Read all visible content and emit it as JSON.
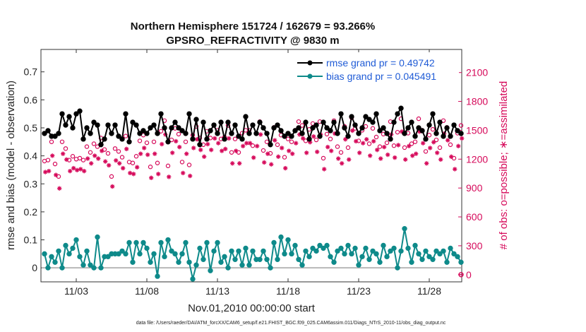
{
  "chart_data": {
    "type": "line",
    "title": "Northern Hemisphere 151724 / 162679 = 93.266%",
    "subtitle": "GPSRO_REFRACTIVITY @ 9830 m",
    "xlabel": "Nov.01,2010 00:00:00 start",
    "ylabel": "rmse and bias (model - observation)",
    "y2label": "# of obs: o=possible; ∗=assimilated",
    "footnote": "data file: /Users/raeder/DAI/ATM_forcXX/CAM6_setup/f.e21.FHIST_BGC.f09_025.CAM6assim.011/Diags_NTrS_2010-11/obs_diag_output.nc",
    "xlim": [
      0.5,
      30.3
    ],
    "ylim": [
      -0.05,
      0.78
    ],
    "y2lim": [
      -75,
      2340
    ],
    "xticks": [
      3,
      8,
      13,
      18,
      23,
      28
    ],
    "xtick_labels": [
      "11/03",
      "11/08",
      "11/13",
      "11/18",
      "11/23",
      "11/28"
    ],
    "yticks": [
      0,
      0.1,
      0.2,
      0.3,
      0.4,
      0.5,
      0.6,
      0.7
    ],
    "ytick_labels": [
      "0",
      "0.1",
      "0.2",
      "0.3",
      "0.4",
      "0.5",
      "0.6",
      "0.7"
    ],
    "y2ticks": [
      0,
      300,
      600,
      900,
      1200,
      1500,
      1800,
      2100
    ],
    "y2tick_labels": [
      "0",
      "300",
      "600",
      "900",
      "1200",
      "1500",
      "1800",
      "2100"
    ],
    "legend": [
      "rmse grand pr = 0.49742",
      "bias grand pr = 0.045491"
    ],
    "colors": {
      "rmse": "#000000",
      "bias": "#0e8a8a",
      "obs": "#d6095a",
      "zero": "#b8b8b8"
    },
    "x_start": 0.75,
    "x_step": 0.25,
    "series": [
      {
        "name": "rmse",
        "values": [
          0.48,
          0.49,
          0.47,
          0.47,
          0.48,
          0.55,
          0.51,
          0.54,
          0.5,
          0.55,
          0.56,
          0.46,
          0.5,
          0.48,
          0.52,
          0.51,
          0.44,
          0.46,
          0.51,
          0.48,
          0.51,
          0.47,
          0.46,
          0.55,
          0.45,
          0.52,
          0.51,
          0.48,
          0.49,
          0.48,
          0.5,
          0.51,
          0.48,
          0.55,
          0.5,
          0.45,
          0.5,
          0.52,
          0.5,
          0.49,
          0.48,
          0.55,
          0.46,
          0.53,
          0.44,
          0.52,
          0.46,
          0.49,
          0.51,
          0.48,
          0.52,
          0.46,
          0.52,
          0.48,
          0.51,
          0.47,
          0.46,
          0.54,
          0.48,
          0.51,
          0.48,
          0.52,
          0.5,
          0.48,
          0.44,
          0.5,
          0.51,
          0.49,
          0.47,
          0.48,
          0.47,
          0.49,
          0.5,
          0.48,
          0.52,
          0.46,
          0.5,
          0.51,
          0.47,
          0.52,
          0.5,
          0.49,
          0.52,
          0.48,
          0.55,
          0.5,
          0.47,
          0.54,
          0.51,
          0.48,
          0.5,
          0.54,
          0.53,
          0.52,
          0.55,
          0.49,
          0.5,
          0.48,
          0.46,
          0.52,
          0.55,
          0.57,
          0.48,
          0.5,
          0.52,
          0.47,
          0.5,
          0.49,
          0.46,
          0.51,
          0.55,
          0.48,
          0.52,
          0.47,
          0.5,
          0.47,
          0.51,
          0.49,
          0.48
        ]
      },
      {
        "name": "bias",
        "values": [
          0.05,
          0.0,
          0.04,
          0.02,
          0.06,
          0.0,
          0.08,
          0.05,
          0.07,
          0.1,
          0.04,
          0.01,
          0.06,
          0.01,
          0.0,
          0.11,
          0.0,
          0.04,
          0.04,
          0.05,
          0.05,
          0.05,
          0.06,
          0.05,
          0.09,
          0.02,
          0.09,
          0.05,
          0.09,
          0.07,
          0.02,
          0.05,
          -0.03,
          0.09,
          0.04,
          0.1,
          0.06,
          0.05,
          0.02,
          0.05,
          0.09,
          0.02,
          -0.04,
          0.01,
          0.07,
          0.03,
          0.09,
          -0.01,
          0.06,
          0.09,
          0.02,
          0.04,
          0.0,
          0.06,
          0.03,
          0.06,
          0.01,
          0.07,
          0.01,
          0.06,
          0.03,
          0.03,
          0.06,
          0.03,
          0.0,
          0.09,
          0.03,
          0.11,
          0.05,
          0.1,
          0.05,
          0.08,
          0.03,
          0.01,
          0.06,
          0.04,
          0.07,
          0.06,
          0.08,
          0.07,
          0.08,
          0.04,
          0.02,
          0.06,
          0.07,
          0.05,
          0.08,
          0.05,
          0.07,
          0.01,
          0.04,
          0.07,
          0.03,
          0.06,
          0.05,
          0.02,
          0.08,
          0.04,
          0.06,
          0.07,
          0.0,
          0.06,
          0.14,
          0.07,
          0.02,
          0.08,
          0.05,
          0.03,
          0.06,
          0.04,
          0.03,
          0.06,
          0.05,
          0.06,
          0.02,
          0.07,
          0.05,
          0.04,
          0.02
        ]
      },
      {
        "name": "possible",
        "values": [
          1180,
          1190,
          1380,
          1150,
          1020,
          1380,
          1310,
          1190,
          1230,
          1200,
          1210,
          1190,
          1330,
          1270,
          1360,
          1330,
          1420,
          1300,
          1260,
          1020,
          1310,
          1280,
          1220,
          1440,
          1170,
          1160,
          1230,
          1390,
          1450,
          1370,
          1120,
          1380,
          1160,
          1490,
          1600,
          1130,
          1400,
          1520,
          1460,
          1170,
          1380,
          1140,
          1450,
          1540,
          1420,
          1350,
          1490,
          1420,
          1550,
          1500,
          1410,
          1430,
          1550,
          1270,
          1410,
          1270,
          1470,
          1500,
          1500,
          1340,
          1470,
          1590,
          1290,
          1380,
          1260,
          1530,
          1350,
          1450,
          1220,
          1410,
          1380,
          1500,
          1590,
          1550,
          1390,
          1510,
          1570,
          1400,
          1590,
          1210,
          1460,
          1410,
          1600,
          1330,
          1270,
          1540,
          1320,
          1630,
          1520,
          1390,
          1500,
          1540,
          1360,
          1520,
          1430,
          1330,
          1460,
          1370,
          1590,
          1340,
          1480,
          1620,
          1320,
          1470,
          1360,
          1380,
          1620,
          1500,
          1280,
          1450,
          1510,
          1400,
          1320,
          1600,
          1530,
          1350,
          1210,
          1470,
          1550
        ]
      },
      {
        "name": "assimilated",
        "values": [
          1110,
          1120,
          1280,
          1080,
          940,
          1300,
          1240,
          1120,
          1150,
          1130,
          1140,
          1120,
          1250,
          1200,
          1280,
          1250,
          1330,
          1220,
          1180,
          960,
          1230,
          1200,
          1150,
          1350,
          1100,
          1090,
          1160,
          1300,
          1360,
          1290,
          1050,
          1300,
          1090,
          1400,
          1500,
          1060,
          1310,
          1430,
          1370,
          1100,
          1300,
          1070,
          1360,
          1450,
          1340,
          1270,
          1400,
          1340,
          1460,
          1410,
          1330,
          1350,
          1460,
          1200,
          1330,
          1200,
          1380,
          1410,
          1410,
          1260,
          1380,
          1500,
          1210,
          1300,
          1190,
          1440,
          1270,
          1360,
          1150,
          1330,
          1300,
          1410,
          1500,
          1460,
          1310,
          1420,
          1480,
          1320,
          1500,
          1140,
          1370,
          1330,
          1510,
          1250,
          1200,
          1450,
          1240,
          1540,
          1430,
          1310,
          1410,
          1450,
          1280,
          1430,
          1340,
          1250,
          1370,
          1290,
          1500,
          1260,
          1390,
          1530,
          1240,
          1380,
          1280,
          1300,
          1530,
          1410,
          1200,
          1360,
          1420,
          1310,
          1240,
          1510,
          1440,
          1270,
          1140,
          1380,
          1460
        ]
      }
    ],
    "outliers_at_zero": [
      {
        "series": "possible",
        "x": 30.25,
        "value": 0
      }
    ]
  }
}
